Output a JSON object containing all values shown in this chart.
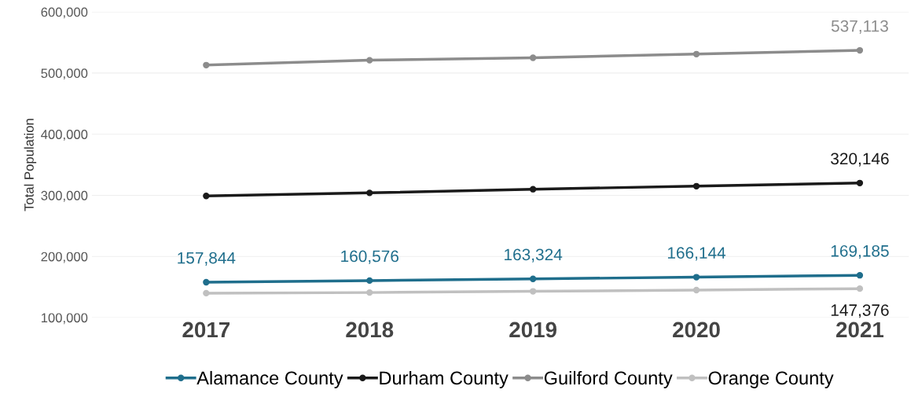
{
  "chart_data": {
    "type": "line",
    "ylabel": "Total Population",
    "categories": [
      "2017",
      "2018",
      "2019",
      "2020",
      "2021"
    ],
    "series": [
      {
        "name": "Alamance County",
        "color": "#1f6e8c",
        "values": [
          157844,
          160576,
          163324,
          166144,
          169185
        ],
        "value_labels": [
          "157,844",
          "160,576",
          "163,324",
          "166,144",
          "169,185"
        ]
      },
      {
        "name": "Durham County",
        "color": "#1a1a1a",
        "values": [
          299000,
          304000,
          310000,
          315000,
          320146
        ],
        "value_labels": [
          null,
          null,
          null,
          null,
          "320,146"
        ]
      },
      {
        "name": "Guilford County",
        "color": "#8c8c8c",
        "values": [
          513000,
          521000,
          525000,
          531000,
          537113
        ],
        "value_labels": [
          null,
          null,
          null,
          null,
          "537,113"
        ]
      },
      {
        "name": "Orange County",
        "color": "#c0c0c0",
        "values": [
          140000,
          141000,
          143000,
          145000,
          147376
        ],
        "value_labels": [
          null,
          null,
          null,
          null,
          "147,376"
        ]
      }
    ],
    "ylim": [
      100000,
      600000
    ],
    "yticks": [
      {
        "value": 100000,
        "label": "100,000"
      },
      {
        "value": 200000,
        "label": "200,000"
      },
      {
        "value": 300000,
        "label": "300,000"
      },
      {
        "value": 400000,
        "label": "400,000"
      },
      {
        "value": 500000,
        "label": "500,000"
      },
      {
        "value": 600000,
        "label": "600,000"
      }
    ],
    "grid": "y",
    "legend": "bottom",
    "marker": "circle",
    "line_style": "solid"
  }
}
